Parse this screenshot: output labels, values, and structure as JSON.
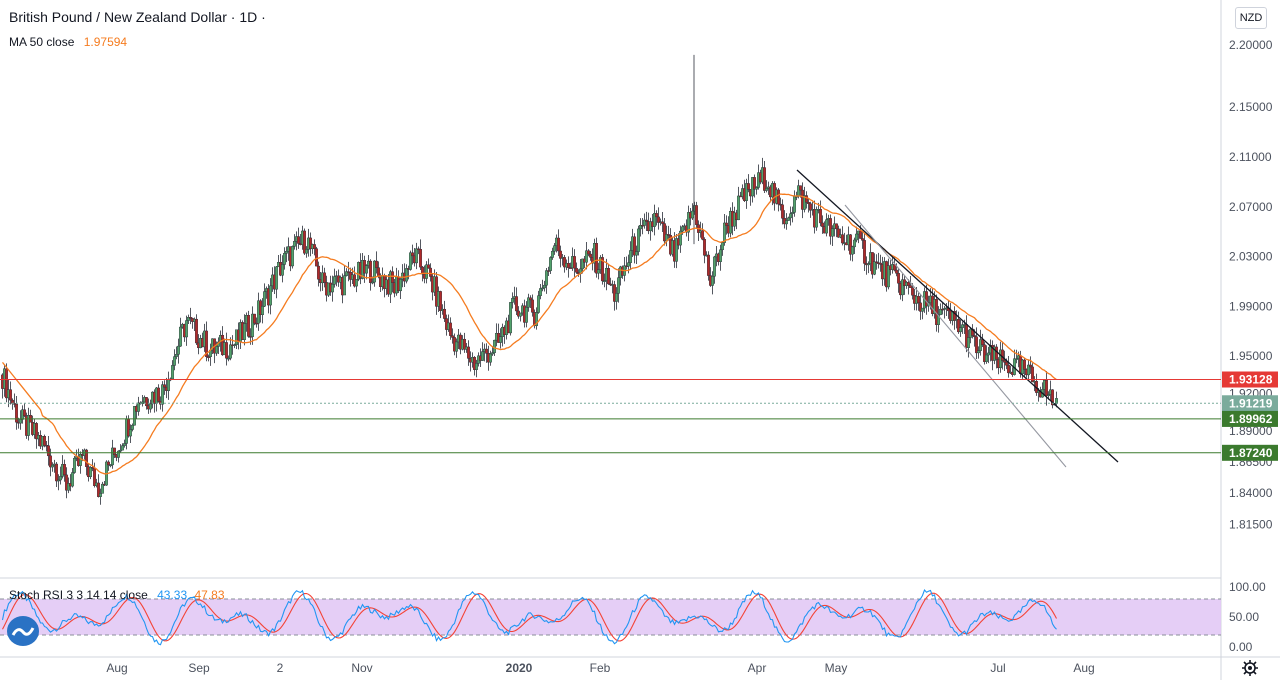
{
  "header": {
    "symbol": "British Pound / New Zealand Dollar",
    "timeframe": "1D",
    "ma_label": "MA 50 close",
    "ma_value": "1.97594",
    "currency": "NZD"
  },
  "colors": {
    "up": "#26a69a",
    "down": "#ef5350",
    "ma": "#f57c20",
    "stoch_k": "#2196f3",
    "stoch_d": "#f44336",
    "band": "#e1c6f5",
    "hline_red": "#e53935",
    "hline_green": "#3b7a2e",
    "grid_text": "#4c525e"
  },
  "chart_data": [
    {
      "type": "candlestick",
      "title": "British Pound / New Zealand Dollar · 1D",
      "ylim": [
        1.8,
        2.22
      ],
      "yticks": [
        "2.20000",
        "2.15000",
        "2.11000",
        "2.07000",
        "2.03000",
        "1.99000",
        "1.95000",
        "1.92000",
        "1.89000",
        "1.86500",
        "1.84000",
        "1.81500"
      ],
      "x_labels": [
        "Aug",
        "Sep",
        "2",
        "Nov",
        "2020",
        "Feb",
        "Apr",
        "May",
        "Jul",
        "Aug"
      ],
      "price_tags": [
        {
          "value": 1.93128,
          "label": "1.93128",
          "color": "#e53935"
        },
        {
          "value": 1.91219,
          "label": "1.91219",
          "color": "#7aab9c"
        },
        {
          "value": 1.89962,
          "label": "1.89962",
          "color": "#3b7a2e"
        },
        {
          "value": 1.8724,
          "label": "1.87240",
          "color": "#3b7a2e"
        }
      ],
      "ma50_value": 1.97594,
      "series_summary": {
        "start": 1.935,
        "low_aug": 1.828,
        "high_nov": 2.055,
        "high_mar_wick": 2.192,
        "high_apr": 2.105,
        "last": 1.905
      }
    },
    {
      "type": "line",
      "title": "Stoch RSI 3 3 14 14 close",
      "k_label": "43.33",
      "d_label": "47.83",
      "ylim": [
        0,
        100
      ],
      "yticks": [
        "100.00",
        "50.00",
        "0.00"
      ],
      "band": [
        20,
        80
      ]
    }
  ]
}
